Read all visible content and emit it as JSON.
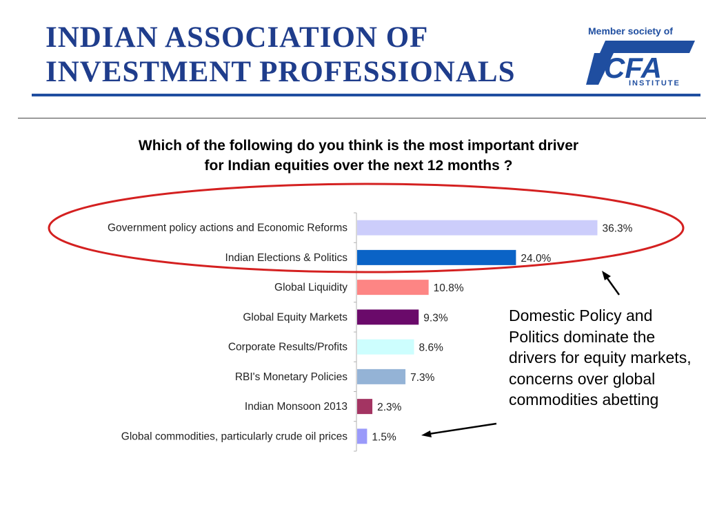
{
  "header": {
    "org_line1": "INDIAN ASSOCIATION OF",
    "org_line2": "INVESTMENT PROFESSIONALS",
    "member_text": "Member society of",
    "logo_text": "CFA",
    "logo_sub": "INSTITUTE"
  },
  "question": {
    "line1": "Which of the following do you think is the most important driver",
    "line2": "for Indian equities over the next 12 months ?"
  },
  "callout": {
    "text": "Domestic Policy and Politics dominate the drivers for equity markets, concerns over global commodities abetting"
  },
  "colors": {
    "brand_blue": "#1f3d8c",
    "highlight_ellipse": "#d42020"
  },
  "chart_data": {
    "type": "bar",
    "orientation": "horizontal",
    "categories": [
      "Government policy actions and Economic Reforms",
      "Indian Elections & Politics",
      "Global Liquidity",
      "Global Equity Markets",
      "Corporate Results/Profits",
      "RBI's Monetary Policies",
      "Indian Monsoon 2013",
      "Global commodities, particularly crude oil prices"
    ],
    "values": [
      36.3,
      24.0,
      10.8,
      9.3,
      8.6,
      7.3,
      2.3,
      1.5
    ],
    "value_labels": [
      "36.3%",
      "24.0%",
      "10.8%",
      "9.3%",
      "8.6%",
      "7.3%",
      "2.3%",
      "1.5%"
    ],
    "colors": [
      "#cccdfb",
      "#0a63c6",
      "#fd8584",
      "#6a0a6a",
      "#cdfefe",
      "#94b3d6",
      "#a33462",
      "#9a9afa"
    ],
    "xlim": [
      0,
      40
    ],
    "grid": false,
    "legend": "none"
  }
}
